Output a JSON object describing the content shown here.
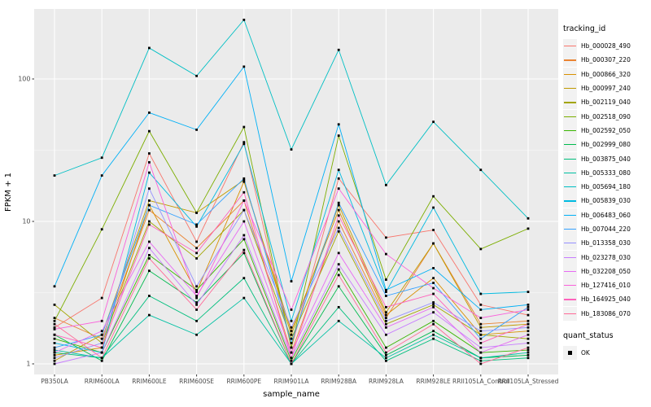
{
  "figure": {
    "legend": {
      "tracking_title": "tracking_id",
      "quant_title": "quant_status",
      "quant_label": "OK"
    }
  },
  "colors": {
    "background": "#FFFFFF",
    "panel_bg": "#EBEBEB",
    "grid_major": "#FFFFFF",
    "grid_minor": "#FFFFFF",
    "axis_text": "#4D4D4D",
    "tick": "#333333",
    "axis_title": "#000000",
    "legend_key_bg": "#F2F2F2",
    "point": "#000000"
  },
  "chart_data": {
    "type": "line",
    "title": "",
    "xlabel": "sample_name",
    "ylabel": "FPKM + 1",
    "y_scale": "log10",
    "ylim": [
      0.84,
      310
    ],
    "y_major_ticks": [
      1,
      10,
      100
    ],
    "y_minor_ticks": [
      3.1623,
      31.623
    ],
    "grid": true,
    "legend_position": "right",
    "point_shape": "filled-square",
    "point_color": "#000000",
    "quant_status": "OK",
    "categories": [
      "PB350LA",
      "RRIM600LA",
      "RRIM600LE",
      "RRIM600SE",
      "RRIM600PE",
      "RRIM901LA",
      "RRIM928BA",
      "RRIM928LA",
      "RRIM928LE",
      "RRII105LA_Control",
      "RRII105LA_Stressed"
    ],
    "series": [
      {
        "name": "Hb_000028_490",
        "color": "#F8766D",
        "values": [
          1.8,
          2.9,
          30,
          7.2,
          36,
          1.3,
          20,
          7.7,
          8.7,
          2.6,
          2.2
        ]
      },
      {
        "name": "Hb_000307_220",
        "color": "#EA8331",
        "values": [
          2.1,
          1.5,
          12,
          6.5,
          14,
          1.2,
          10,
          2.1,
          7.0,
          1.9,
          2.0
        ]
      },
      {
        "name": "Hb_000866_320",
        "color": "#D89000",
        "values": [
          1.15,
          1.3,
          13,
          3.2,
          19,
          1.7,
          12,
          2.2,
          4.0,
          1.6,
          1.7
        ]
      },
      {
        "name": "Hb_000997_240",
        "color": "#C09B00",
        "values": [
          1.05,
          1.6,
          14,
          11.5,
          19.5,
          1.6,
          13,
          2.3,
          7.0,
          1.8,
          1.9
        ]
      },
      {
        "name": "Hb_002119_040",
        "color": "#A3A500",
        "values": [
          2.6,
          1.4,
          10,
          5.5,
          12,
          1.5,
          8.5,
          1.9,
          2.6,
          1.6,
          1.5
        ]
      },
      {
        "name": "Hb_002518_090",
        "color": "#7CAE00",
        "values": [
          2.0,
          8.8,
          43,
          11.5,
          46,
          1.3,
          40,
          3.9,
          15,
          6.4,
          8.9
        ]
      },
      {
        "name": "Hb_002592_050",
        "color": "#39B600",
        "values": [
          1.5,
          1.2,
          5.8,
          3.3,
          7.5,
          1.05,
          4.6,
          1.3,
          2.0,
          1.2,
          1.25
        ]
      },
      {
        "name": "Hb_002999_080",
        "color": "#00BB4E",
        "values": [
          1.6,
          1.05,
          4.5,
          2.7,
          6.0,
          1.0,
          3.5,
          1.15,
          1.7,
          1.1,
          1.15
        ]
      },
      {
        "name": "Hb_003875_040",
        "color": "#00BF7D",
        "values": [
          1.2,
          1.1,
          3.0,
          2.0,
          4.0,
          1.0,
          2.5,
          1.05,
          1.5,
          1.05,
          1.1
        ]
      },
      {
        "name": "Hb_005333_080",
        "color": "#00C1A3",
        "values": [
          1.25,
          1.1,
          2.2,
          1.6,
          2.9,
          1.0,
          2.0,
          1.1,
          1.6,
          1.1,
          1.2
        ]
      },
      {
        "name": "Hb_005694_180",
        "color": "#00BFC4",
        "values": [
          21,
          28,
          165,
          105,
          260,
          32,
          160,
          18,
          50,
          23,
          10.5
        ]
      },
      {
        "name": "Hb_005839_030",
        "color": "#00BAE0",
        "values": [
          1.4,
          1.2,
          22,
          9.2,
          35,
          2.0,
          23,
          3.2,
          12.5,
          3.1,
          3.2
        ]
      },
      {
        "name": "Hb_006483_060",
        "color": "#00B0F6",
        "values": [
          3.5,
          21,
          58,
          44,
          122,
          3.8,
          48,
          3.3,
          4.7,
          2.4,
          2.6
        ]
      },
      {
        "name": "Hb_007044_220",
        "color": "#35A2FF",
        "values": [
          1.3,
          1.6,
          13,
          9.5,
          20,
          1.4,
          13.5,
          3.0,
          3.7,
          1.5,
          2.5
        ]
      },
      {
        "name": "Hb_013358_030",
        "color": "#9590FF",
        "values": [
          1.1,
          1.4,
          17,
          3.5,
          12,
          1.8,
          9.0,
          2.0,
          2.7,
          1.7,
          1.8
        ]
      },
      {
        "name": "Hb_023278_030",
        "color": "#C77CFF",
        "values": [
          1.0,
          1.2,
          6.5,
          2.6,
          8.0,
          1.1,
          5.0,
          1.6,
          2.3,
          1.3,
          1.4
        ]
      },
      {
        "name": "Hb_032208_050",
        "color": "#E76BF3",
        "values": [
          1.2,
          1.7,
          7.2,
          3.0,
          10,
          1.2,
          6.0,
          1.8,
          2.5,
          1.2,
          1.6
        ]
      },
      {
        "name": "Hb_127416_010",
        "color": "#FA62DB",
        "values": [
          1.75,
          2.0,
          26,
          2.9,
          14,
          2.4,
          17,
          5.9,
          3.4,
          2.1,
          2.4
        ]
      },
      {
        "name": "Hb_164925_040",
        "color": "#FF62BC",
        "values": [
          1.6,
          1.3,
          9.5,
          6.0,
          16,
          1.1,
          11,
          2.5,
          3.1,
          1.4,
          1.9
        ]
      },
      {
        "name": "Hb_183086_070",
        "color": "#FF6A98",
        "values": [
          1.9,
          1.1,
          5.5,
          2.4,
          6.3,
          1.0,
          4.2,
          1.2,
          1.9,
          1.0,
          1.3
        ]
      }
    ]
  }
}
